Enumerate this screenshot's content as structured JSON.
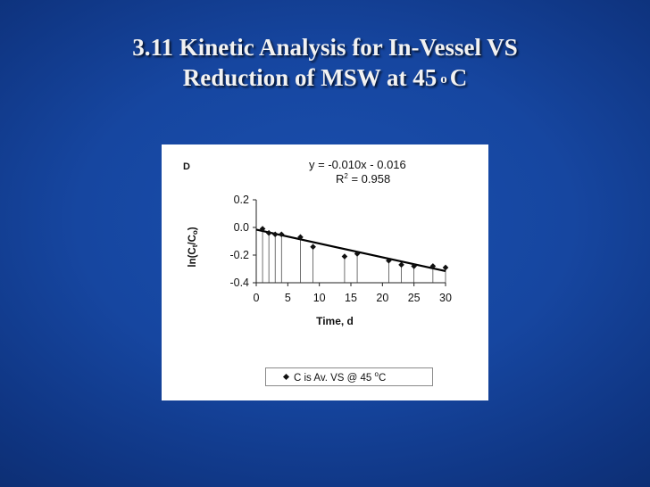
{
  "slide": {
    "title_line1": "3.11 Kinetic Analysis for In-Vessel VS",
    "title_line2_pre": "Reduction of MSW at 45",
    "title_degree": "o",
    "title_unit": "C"
  },
  "chart_data": {
    "type": "scatter",
    "panel_label": "D",
    "equation": "y = -0.010x - 0.016",
    "r2_label": "R",
    "r2_sup": "2",
    "r2_value": " = 0.958",
    "xlabel": "Time, d",
    "ylabel": "ln(Ct/Co)",
    "xlim": [
      0,
      30
    ],
    "ylim": [
      -0.4,
      0.2
    ],
    "xticks": [
      0,
      5,
      10,
      15,
      20,
      25,
      30
    ],
    "yticks": [
      0.2,
      0.0,
      -0.2,
      -0.4
    ],
    "xtick_labels": [
      "0",
      "5",
      "10",
      "15",
      "20",
      "25",
      "30"
    ],
    "ytick_labels": [
      "0.2",
      "0.0",
      "-0.2",
      "-0.4"
    ],
    "trendline": {
      "slope": -0.01,
      "intercept": -0.016
    },
    "series": [
      {
        "name": "C is Av. VS @ 45 oC",
        "x": [
          1,
          2,
          3,
          4,
          7,
          9,
          14,
          16,
          21,
          23,
          25,
          28,
          30
        ],
        "y": [
          -0.01,
          -0.04,
          -0.05,
          -0.05,
          -0.07,
          -0.14,
          -0.21,
          -0.19,
          -0.24,
          -0.27,
          -0.28,
          -0.28,
          -0.29
        ]
      }
    ],
    "legend": {
      "text_pre": "C is Av. VS @ 45 ",
      "text_sup": "o",
      "text_post": "C",
      "position": "bottom"
    },
    "grid": false,
    "colors": {
      "marker": "#111111",
      "trend": "#000000",
      "drop_lines": "#333333"
    }
  }
}
